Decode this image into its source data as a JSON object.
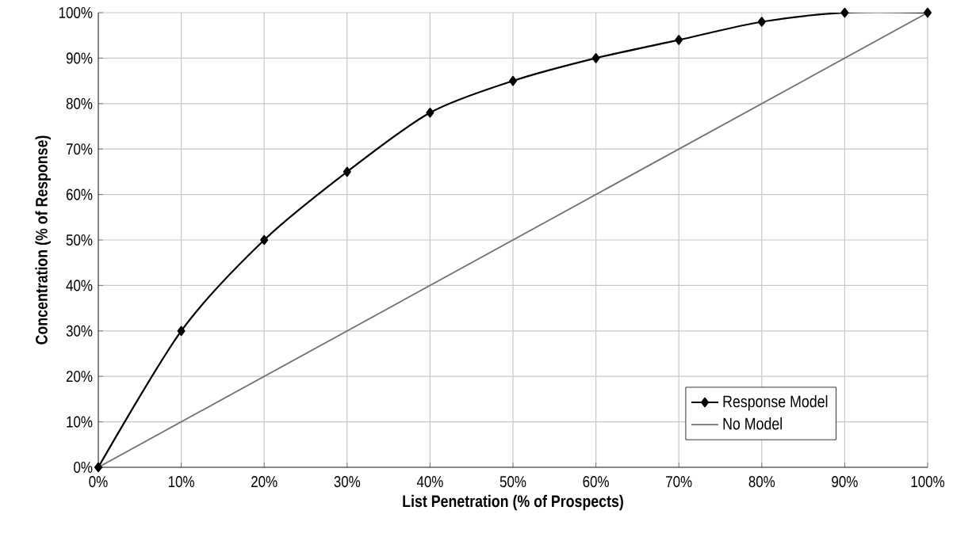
{
  "chart_data": {
    "type": "line",
    "xlabel": "List Penetration (% of Prospects)",
    "ylabel": "Concentration (% of Response)",
    "x": [
      0,
      10,
      20,
      30,
      40,
      50,
      60,
      70,
      80,
      90,
      100
    ],
    "series": [
      {
        "name": "Response Model",
        "color": "#000000",
        "marker": "diamond",
        "values": [
          0,
          30,
          50,
          65,
          78,
          85,
          90,
          94,
          98,
          100,
          100
        ]
      },
      {
        "name": "No Model",
        "color": "#707070",
        "marker": "none",
        "x": [
          0,
          100
        ],
        "values": [
          0,
          100
        ]
      }
    ],
    "xlim": [
      0,
      100
    ],
    "ylim": [
      0,
      100
    ],
    "xticks": [
      {
        "value": 0,
        "label": "0%"
      },
      {
        "value": 10,
        "label": "10%"
      },
      {
        "value": 20,
        "label": "20%"
      },
      {
        "value": 30,
        "label": "30%"
      },
      {
        "value": 40,
        "label": "40%"
      },
      {
        "value": 50,
        "label": "50%"
      },
      {
        "value": 60,
        "label": "60%"
      },
      {
        "value": 70,
        "label": "70%"
      },
      {
        "value": 80,
        "label": "80%"
      },
      {
        "value": 90,
        "label": "90%"
      },
      {
        "value": 100,
        "label": "100%"
      }
    ],
    "yticks": [
      {
        "value": 0,
        "label": "0%"
      },
      {
        "value": 10,
        "label": "10%"
      },
      {
        "value": 20,
        "label": "20%"
      },
      {
        "value": 30,
        "label": "30%"
      },
      {
        "value": 40,
        "label": "40%"
      },
      {
        "value": 50,
        "label": "50%"
      },
      {
        "value": 60,
        "label": "60%"
      },
      {
        "value": 70,
        "label": "70%"
      },
      {
        "value": 80,
        "label": "80%"
      },
      {
        "value": 90,
        "label": "90%"
      },
      {
        "value": 100,
        "label": "100%"
      }
    ],
    "grid": true,
    "legend": "bottom right",
    "line_style": "solid"
  }
}
